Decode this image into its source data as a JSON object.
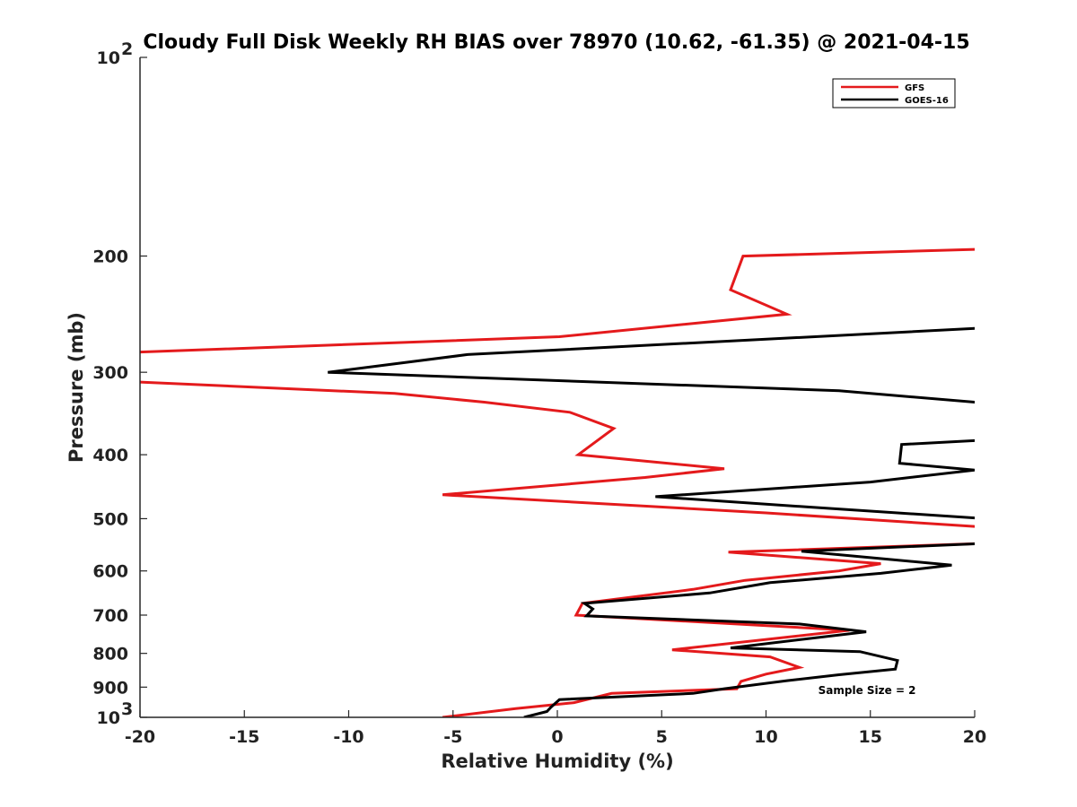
{
  "chart_data": {
    "type": "line",
    "title": "Cloudy Full Disk Weekly RH BIAS over 78970 (10.62, -61.35) @ 2021-04-15",
    "xlabel": "Relative Humidity (%)",
    "ylabel": "Pressure (mb)",
    "xlim": [
      -20,
      20
    ],
    "ylim": [
      100,
      1000
    ],
    "yscale": "log",
    "yreversed": true,
    "grid": false,
    "legend_position": "top-right",
    "x_ticks": [
      "-20",
      "-15",
      "-10",
      "-5",
      "0",
      "5",
      "10",
      "15",
      "20"
    ],
    "y_ticks": [
      {
        "value": 100,
        "base": "10",
        "exp": "2"
      },
      {
        "value": 200,
        "label": "200"
      },
      {
        "value": 300,
        "label": "300"
      },
      {
        "value": 400,
        "label": "400"
      },
      {
        "value": 500,
        "label": "500"
      },
      {
        "value": 600,
        "label": "600"
      },
      {
        "value": 700,
        "label": "700"
      },
      {
        "value": 800,
        "label": "800"
      },
      {
        "value": 900,
        "label": "900"
      },
      {
        "value": 1000,
        "base": "10",
        "exp": "3"
      }
    ],
    "series": [
      {
        "name": "GFS",
        "color": "#e41a1c",
        "points": [
          [
            21,
            195
          ],
          [
            8.9,
            200
          ],
          [
            8.3,
            225
          ],
          [
            11,
            245
          ],
          [
            0.1,
            265
          ],
          [
            -20.5,
            280
          ],
          [
            -20.5,
            310
          ],
          [
            -7.8,
            323
          ],
          [
            -3.5,
            333
          ],
          [
            0.6,
            345
          ],
          [
            2.7,
            365
          ],
          [
            1.0,
            400
          ],
          [
            8.0,
            420
          ],
          [
            4.2,
            433
          ],
          [
            -5.5,
            460
          ],
          [
            10,
            490
          ],
          [
            20.5,
            515
          ],
          [
            20.5,
            545
          ],
          [
            8.2,
            562
          ],
          [
            15.5,
            585
          ],
          [
            13.5,
            600
          ],
          [
            9.0,
            620
          ],
          [
            6.5,
            640
          ],
          [
            1.2,
            672
          ],
          [
            0.9,
            700
          ],
          [
            14,
            738
          ],
          [
            5.5,
            790
          ],
          [
            10.2,
            810
          ],
          [
            11.6,
            840
          ],
          [
            10,
            860
          ],
          [
            8.8,
            882
          ],
          [
            8.6,
            905
          ],
          [
            2.6,
            920
          ],
          [
            0.8,
            950
          ],
          [
            -2,
            970
          ],
          [
            -5.5,
            1000
          ]
        ]
      },
      {
        "name": "GOES-16",
        "color": "#000000",
        "points": [
          [
            20.5,
            257
          ],
          [
            -4.3,
            282
          ],
          [
            -11,
            300
          ],
          [
            13.5,
            320
          ],
          [
            20.5,
            334
          ],
          [
            20.5,
            380
          ],
          [
            16.5,
            386
          ],
          [
            16.4,
            412
          ],
          [
            20,
            422
          ],
          [
            15,
            440
          ],
          [
            4.7,
            463
          ],
          [
            12,
            480
          ],
          [
            20.5,
            500
          ],
          [
            20.5,
            545
          ],
          [
            11.7,
            560
          ],
          [
            18.9,
            588
          ],
          [
            15.5,
            605
          ],
          [
            10.2,
            625
          ],
          [
            7.3,
            648
          ],
          [
            1.3,
            672
          ],
          [
            1.7,
            685
          ],
          [
            1.4,
            702
          ],
          [
            11.6,
            722
          ],
          [
            14.8,
            742
          ],
          [
            8.3,
            785
          ],
          [
            14.5,
            795
          ],
          [
            16.3,
            820
          ],
          [
            16.2,
            845
          ],
          [
            13.5,
            862
          ],
          [
            11,
            880
          ],
          [
            8,
            905
          ],
          [
            6.5,
            920
          ],
          [
            0.1,
            940
          ],
          [
            -0.3,
            965
          ],
          [
            -0.5,
            980
          ],
          [
            -1.6,
            1000
          ]
        ]
      }
    ],
    "annotations": [
      {
        "text": "Sample Size = 2",
        "x": 12.5,
        "y": 910
      }
    ]
  }
}
